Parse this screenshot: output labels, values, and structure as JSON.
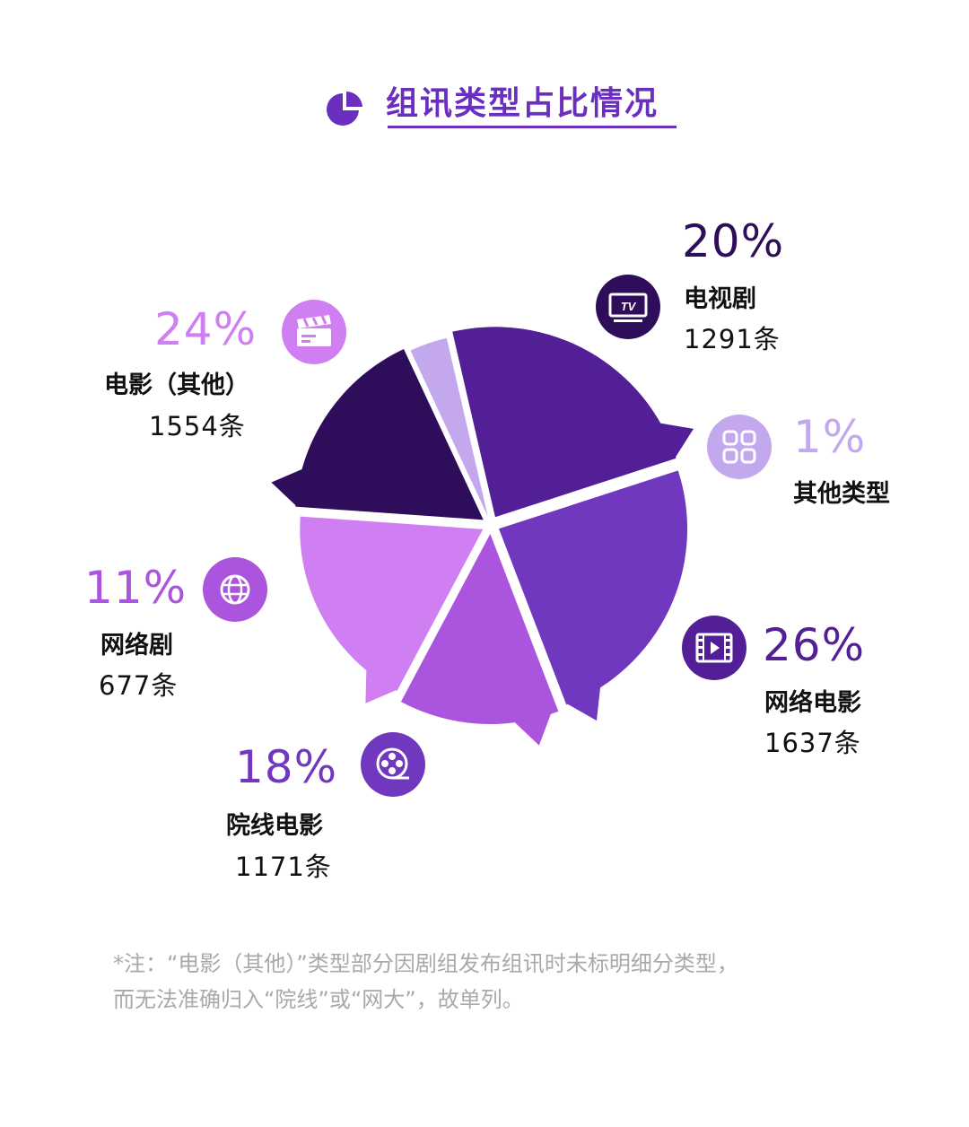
{
  "title": "组讯类型占比情况",
  "colors": {
    "accent": "#6a2fbf",
    "tv": "#2e0d5b",
    "other": "#c4a8ee",
    "web_movie": "#531f96",
    "theater": "#7037bf",
    "web_drama": "#ab54dd",
    "movie_other": "#cf7ff2"
  },
  "chart_data": {
    "type": "pie",
    "slices": [
      {
        "name": "电视剧",
        "percent": 20,
        "count": 1291,
        "percent_label": "20%",
        "count_label": "1291条",
        "color": "#2e0d5b",
        "icon": "tv-icon"
      },
      {
        "name": "其他类型",
        "percent": 1,
        "percent_label": "1%",
        "color": "#c4a8ee",
        "icon": "grid-icon"
      },
      {
        "name": "网络电影",
        "percent": 26,
        "count": 1637,
        "percent_label": "26%",
        "count_label": "1637条",
        "color": "#531f96",
        "icon": "film-strip-icon"
      },
      {
        "name": "院线电影",
        "percent": 18,
        "count": 1171,
        "percent_label": "18%",
        "count_label": "1171条",
        "color": "#7037bf",
        "icon": "film-reel-icon"
      },
      {
        "name": "网络剧",
        "percent": 11,
        "count": 677,
        "percent_label": "11%",
        "count_label": "677条",
        "color": "#ab54dd",
        "icon": "globe-icon"
      },
      {
        "name": "电影（其他）",
        "percent": 24,
        "count": 1554,
        "percent_label": "24%",
        "count_label": "1554条",
        "color": "#cf7ff2",
        "icon": "clapperboard-icon"
      }
    ]
  },
  "note": {
    "line1": "*注：“电影（其他）”类型部分因剧组发布组讯时未标明细分类型，",
    "line2": "而无法准确归入“院线”或“网大”，故单列。"
  }
}
